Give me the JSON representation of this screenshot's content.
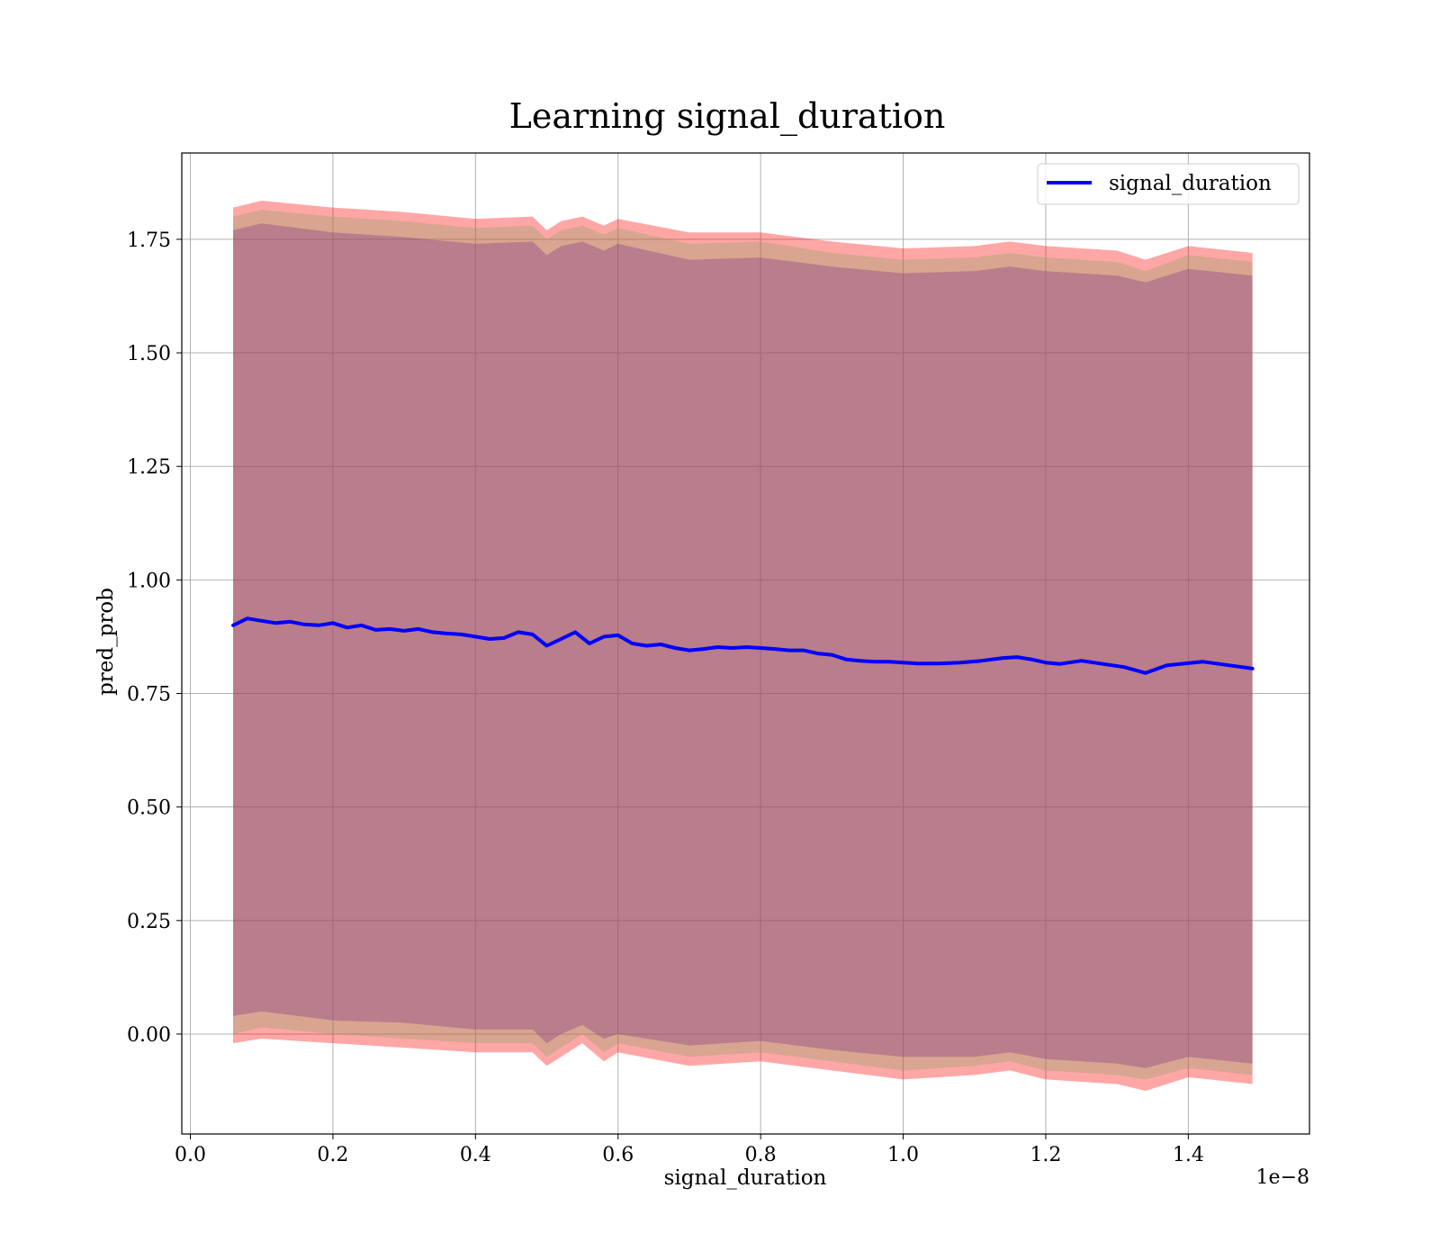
{
  "chart_data": {
    "type": "line",
    "title": "Learning signal_duration",
    "xlabel": "signal_duration",
    "ylabel": "pred_prob",
    "x_offset_label": "1e−8",
    "xlim": [
      -0.012,
      1.57
    ],
    "ylim": [
      -0.22,
      1.94
    ],
    "x_ticks": [
      0.0,
      0.2,
      0.4,
      0.6,
      0.8,
      1.0,
      1.2,
      1.4
    ],
    "x_tick_labels": [
      "0.0",
      "0.2",
      "0.4",
      "0.6",
      "0.8",
      "1.0",
      "1.2",
      "1.4"
    ],
    "y_ticks": [
      0.0,
      0.25,
      0.5,
      0.75,
      1.0,
      1.25,
      1.5,
      1.75
    ],
    "y_tick_labels": [
      "0.00",
      "0.25",
      "0.50",
      "0.75",
      "1.00",
      "1.25",
      "1.50",
      "1.75"
    ],
    "grid": true,
    "legend_position": "top-right",
    "colors": {
      "line": "#0000ff",
      "outer_band": "#ff000059",
      "middle_band": "#8fa36a59",
      "inner_band": "#80338059"
    },
    "series": [
      {
        "name": "signal_duration",
        "x": [
          0.06,
          0.08,
          0.1,
          0.12,
          0.14,
          0.16,
          0.18,
          0.2,
          0.22,
          0.24,
          0.26,
          0.28,
          0.3,
          0.32,
          0.34,
          0.36,
          0.38,
          0.4,
          0.42,
          0.44,
          0.46,
          0.48,
          0.5,
          0.52,
          0.54,
          0.56,
          0.58,
          0.6,
          0.62,
          0.64,
          0.66,
          0.68,
          0.7,
          0.72,
          0.74,
          0.76,
          0.78,
          0.8,
          0.82,
          0.84,
          0.86,
          0.88,
          0.9,
          0.92,
          0.94,
          0.96,
          0.98,
          1.0,
          1.02,
          1.05,
          1.08,
          1.11,
          1.14,
          1.16,
          1.18,
          1.2,
          1.22,
          1.25,
          1.28,
          1.31,
          1.34,
          1.37,
          1.42,
          1.49
        ],
        "y": [
          0.9,
          0.915,
          0.91,
          0.905,
          0.908,
          0.902,
          0.9,
          0.905,
          0.895,
          0.9,
          0.89,
          0.892,
          0.888,
          0.892,
          0.885,
          0.882,
          0.88,
          0.875,
          0.87,
          0.872,
          0.885,
          0.88,
          0.855,
          0.87,
          0.885,
          0.86,
          0.875,
          0.878,
          0.86,
          0.855,
          0.858,
          0.85,
          0.845,
          0.848,
          0.852,
          0.85,
          0.852,
          0.85,
          0.848,
          0.845,
          0.845,
          0.838,
          0.835,
          0.825,
          0.822,
          0.82,
          0.82,
          0.818,
          0.816,
          0.816,
          0.818,
          0.822,
          0.828,
          0.83,
          0.825,
          0.818,
          0.815,
          0.822,
          0.815,
          0.808,
          0.795,
          0.812,
          0.82,
          0.805
        ]
      }
    ],
    "bands": [
      {
        "role": "outer",
        "x": [
          0.06,
          0.1,
          0.2,
          0.3,
          0.4,
          0.48,
          0.5,
          0.52,
          0.55,
          0.58,
          0.6,
          0.7,
          0.8,
          0.9,
          1.0,
          1.1,
          1.15,
          1.2,
          1.3,
          1.34,
          1.4,
          1.49
        ],
        "upper": [
          1.82,
          1.835,
          1.82,
          1.81,
          1.795,
          1.8,
          1.77,
          1.79,
          1.8,
          1.78,
          1.795,
          1.765,
          1.765,
          1.745,
          1.73,
          1.735,
          1.745,
          1.735,
          1.725,
          1.705,
          1.735,
          1.72
        ],
        "lower": [
          -0.02,
          -0.01,
          -0.02,
          -0.03,
          -0.04,
          -0.04,
          -0.07,
          -0.05,
          -0.02,
          -0.06,
          -0.04,
          -0.07,
          -0.06,
          -0.08,
          -0.1,
          -0.09,
          -0.08,
          -0.1,
          -0.11,
          -0.125,
          -0.095,
          -0.11
        ]
      },
      {
        "role": "middle",
        "x": [
          0.06,
          0.1,
          0.2,
          0.3,
          0.4,
          0.48,
          0.5,
          0.52,
          0.55,
          0.58,
          0.6,
          0.7,
          0.8,
          0.9,
          1.0,
          1.1,
          1.15,
          1.2,
          1.3,
          1.34,
          1.4,
          1.49
        ],
        "upper": [
          1.8,
          1.815,
          1.8,
          1.79,
          1.775,
          1.78,
          1.75,
          1.77,
          1.78,
          1.76,
          1.775,
          1.74,
          1.745,
          1.72,
          1.705,
          1.71,
          1.72,
          1.71,
          1.7,
          1.68,
          1.715,
          1.7
        ],
        "lower": [
          0.0,
          0.015,
          0.0,
          -0.01,
          -0.02,
          -0.02,
          -0.05,
          -0.03,
          0.0,
          -0.04,
          -0.02,
          -0.05,
          -0.04,
          -0.06,
          -0.08,
          -0.07,
          -0.06,
          -0.08,
          -0.09,
          -0.1,
          -0.075,
          -0.09
        ]
      },
      {
        "role": "inner",
        "x": [
          0.06,
          0.1,
          0.2,
          0.3,
          0.4,
          0.48,
          0.5,
          0.52,
          0.55,
          0.58,
          0.6,
          0.7,
          0.8,
          0.9,
          1.0,
          1.1,
          1.15,
          1.2,
          1.3,
          1.34,
          1.4,
          1.49
        ],
        "upper": [
          1.77,
          1.785,
          1.765,
          1.755,
          1.74,
          1.745,
          1.715,
          1.735,
          1.745,
          1.725,
          1.74,
          1.705,
          1.71,
          1.69,
          1.675,
          1.68,
          1.69,
          1.68,
          1.67,
          1.655,
          1.685,
          1.67
        ],
        "lower": [
          0.04,
          0.05,
          0.03,
          0.025,
          0.01,
          0.01,
          -0.02,
          0.0,
          0.02,
          -0.01,
          0.0,
          -0.025,
          -0.015,
          -0.035,
          -0.05,
          -0.05,
          -0.04,
          -0.055,
          -0.065,
          -0.075,
          -0.05,
          -0.065
        ]
      }
    ]
  }
}
